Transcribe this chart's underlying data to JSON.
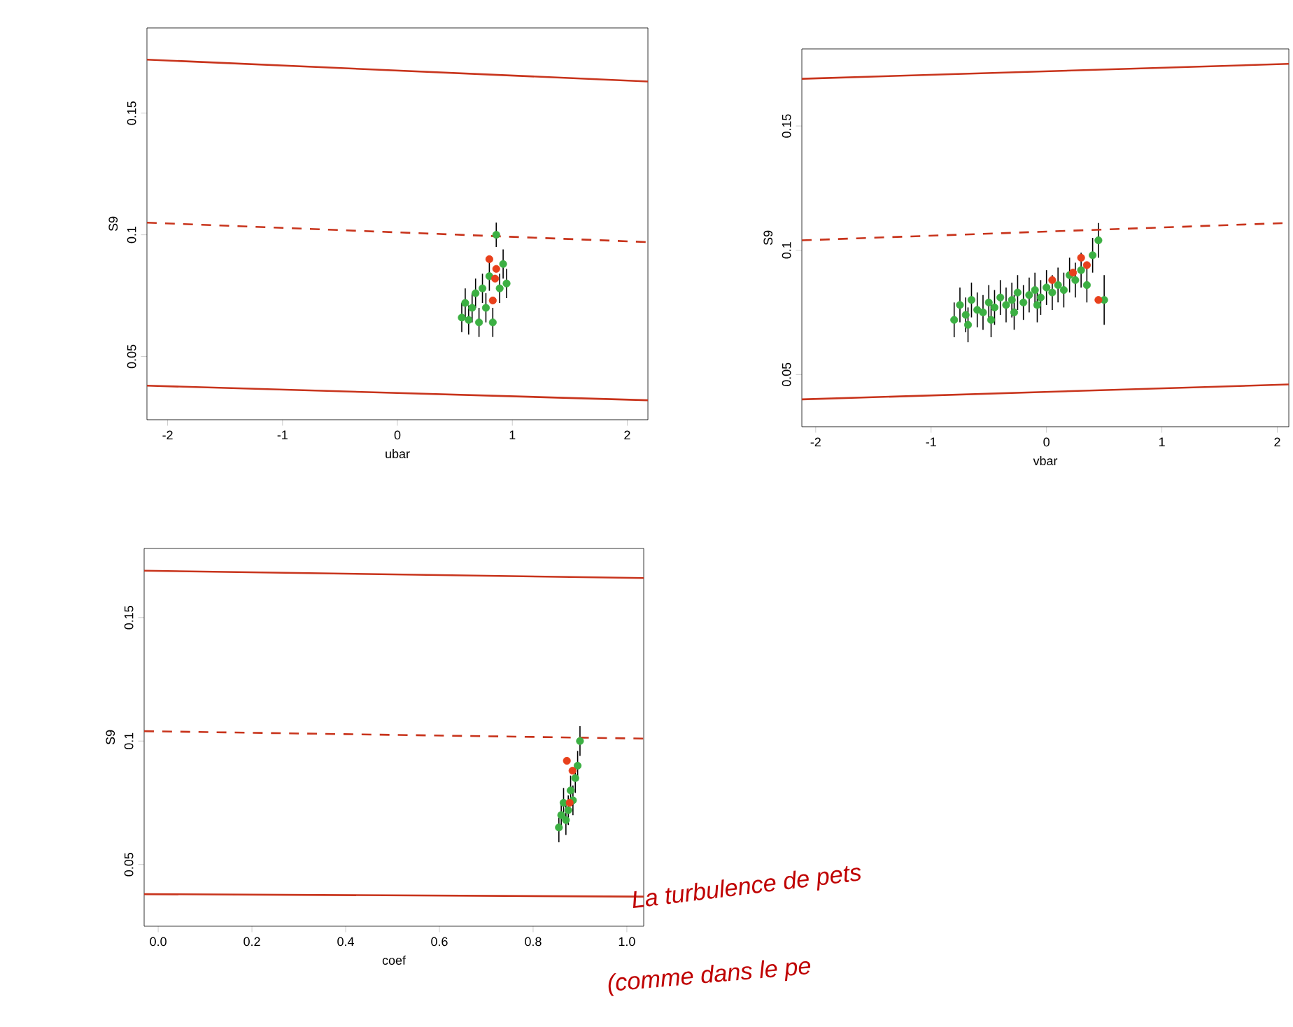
{
  "chart_data": [
    {
      "type": "scatter",
      "xlabel": "ubar",
      "ylabel": "S9",
      "xlim": [
        -2.18,
        2.18
      ],
      "ylim": [
        0.024,
        0.185
      ],
      "xticks": [
        -2,
        -1,
        0,
        1,
        2
      ],
      "yticks": [
        0.05,
        0.1,
        0.15
      ],
      "series": [
        {
          "color": "#3cb043",
          "marker": "circle",
          "x": [
            0.56,
            0.59,
            0.62,
            0.65,
            0.68,
            0.71,
            0.74,
            0.77,
            0.8,
            0.83,
            0.86,
            0.89,
            0.92,
            0.95
          ],
          "values": [
            0.066,
            0.072,
            0.065,
            0.07,
            0.076,
            0.064,
            0.078,
            0.07,
            0.083,
            0.064,
            0.1,
            0.078,
            0.088,
            0.08
          ],
          "errors": [
            0.006,
            0.006,
            0.006,
            0.006,
            0.006,
            0.006,
            0.006,
            0.006,
            0.006,
            0.006,
            0.005,
            0.006,
            0.006,
            0.006
          ]
        },
        {
          "color": "#e8401c",
          "marker": "circle",
          "x": [
            0.83,
            0.86,
            0.85,
            0.8
          ],
          "values": [
            0.073,
            0.086,
            0.082,
            0.09
          ]
        },
        {
          "type": "line",
          "marker": "none",
          "color": "#c8341c",
          "x": [
            -2.18,
            2.18
          ],
          "values": [
            0.172,
            0.163
          ]
        },
        {
          "type": "line",
          "marker": "none",
          "color": "#c8341c",
          "x": [
            -2.18,
            2.18
          ],
          "values": [
            0.038,
            0.032
          ]
        },
        {
          "type": "line",
          "marker": "none",
          "color": "#c8341c",
          "line_style": "dashed",
          "x": [
            -2.18,
            2.18
          ],
          "values": [
            0.105,
            0.097
          ]
        }
      ]
    },
    {
      "type": "scatter",
      "xlabel": "vbar",
      "ylabel": "S9",
      "xlim": [
        -2.12,
        2.1
      ],
      "ylim": [
        0.029,
        0.181
      ],
      "xticks": [
        -2,
        -1,
        0,
        1,
        2
      ],
      "yticks": [
        0.05,
        0.1,
        0.15
      ],
      "series": [
        {
          "color": "#3cb043",
          "marker": "circle",
          "x": [
            -0.8,
            -0.75,
            -0.7,
            -0.65,
            -0.6,
            -0.55,
            -0.5,
            -0.45,
            -0.4,
            -0.35,
            -0.3,
            -0.25,
            -0.2,
            -0.15,
            -0.1,
            -0.05,
            0,
            0.05,
            0.1,
            0.15,
            0.2,
            0.25,
            0.3,
            0.35,
            0.4,
            0.45,
            0.5,
            -0.68,
            -0.48,
            -0.28,
            -0.08
          ],
          "values": [
            0.072,
            0.078,
            0.074,
            0.08,
            0.076,
            0.075,
            0.079,
            0.077,
            0.081,
            0.078,
            0.08,
            0.083,
            0.079,
            0.082,
            0.084,
            0.081,
            0.085,
            0.083,
            0.086,
            0.084,
            0.09,
            0.088,
            0.092,
            0.086,
            0.098,
            0.104,
            0.08,
            0.07,
            0.072,
            0.075,
            0.078
          ],
          "errors": [
            0.007,
            0.007,
            0.007,
            0.007,
            0.007,
            0.007,
            0.007,
            0.007,
            0.007,
            0.007,
            0.007,
            0.007,
            0.007,
            0.007,
            0.007,
            0.007,
            0.007,
            0.007,
            0.007,
            0.007,
            0.007,
            0.007,
            0.007,
            0.007,
            0.007,
            0.007,
            0.01,
            0.007,
            0.007,
            0.007,
            0.007
          ]
        },
        {
          "color": "#e8401c",
          "marker": "circle",
          "x": [
            0.05,
            0.23,
            0.3,
            0.45,
            0.35
          ],
          "values": [
            0.088,
            0.091,
            0.097,
            0.08,
            0.094
          ]
        },
        {
          "type": "line",
          "marker": "none",
          "color": "#c8341c",
          "x": [
            -2.12,
            2.1
          ],
          "values": [
            0.169,
            0.175
          ]
        },
        {
          "type": "line",
          "marker": "none",
          "color": "#c8341c",
          "x": [
            -2.12,
            2.1
          ],
          "values": [
            0.04,
            0.046
          ]
        },
        {
          "type": "line",
          "marker": "none",
          "color": "#c8341c",
          "line_style": "dashed",
          "x": [
            -2.12,
            2.1
          ],
          "values": [
            0.104,
            0.111
          ]
        }
      ]
    },
    {
      "type": "scatter",
      "xlabel": "coef",
      "ylabel": "S9",
      "xlim": [
        -0.03,
        1.036
      ],
      "ylim": [
        0.025,
        0.178
      ],
      "xticks": [
        {
          "value": 0,
          "label": "0.0"
        },
        0.2,
        0.4,
        0.6,
        0.8,
        {
          "value": 1,
          "label": "1.0"
        }
      ],
      "yticks": [
        0.05,
        0.1,
        0.15
      ],
      "annotations": [
        "La turbulence de pets",
        "(comme dans le pe"
      ],
      "series": [
        {
          "color": "#3cb043",
          "marker": "circle",
          "x": [
            0.855,
            0.86,
            0.865,
            0.87,
            0.875,
            0.88,
            0.885,
            0.89,
            0.895,
            0.9
          ],
          "values": [
            0.065,
            0.07,
            0.075,
            0.068,
            0.072,
            0.08,
            0.076,
            0.085,
            0.09,
            0.1
          ],
          "errors": [
            0.006,
            0.006,
            0.006,
            0.006,
            0.006,
            0.006,
            0.006,
            0.006,
            0.006,
            0.006
          ]
        },
        {
          "color": "#e8401c",
          "marker": "circle",
          "x": [
            0.878,
            0.884,
            0.872
          ],
          "values": [
            0.075,
            0.088,
            0.092
          ]
        },
        {
          "type": "line",
          "marker": "none",
          "color": "#c8341c",
          "x": [
            -0.03,
            1.036
          ],
          "values": [
            0.169,
            0.166
          ]
        },
        {
          "type": "line",
          "marker": "none",
          "color": "#c8341c",
          "x": [
            -0.03,
            1.036
          ],
          "values": [
            0.038,
            0.037
          ]
        },
        {
          "type": "line",
          "marker": "none",
          "color": "#c8341c",
          "line_style": "dashed",
          "x": [
            -0.03,
            1.036
          ],
          "values": [
            0.104,
            0.101
          ]
        }
      ]
    }
  ]
}
